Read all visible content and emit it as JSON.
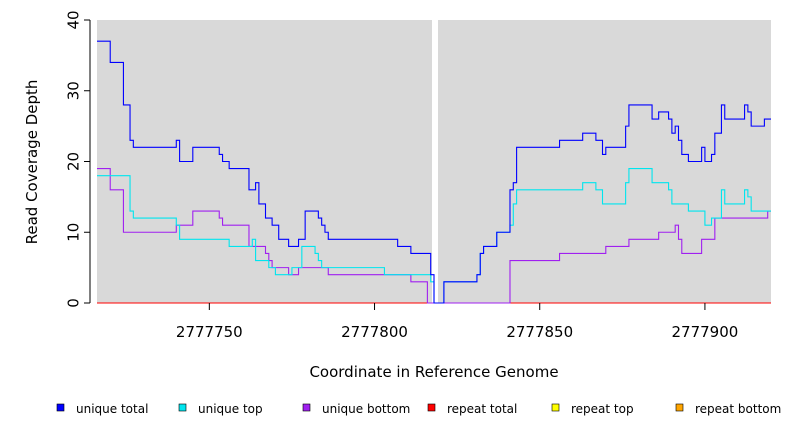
{
  "chart_data": {
    "type": "line",
    "xlabel": "Coordinate in Reference Genome",
    "ylabel": "Read Coverage Depth",
    "xlim": [
      2777716,
      2777920
    ],
    "ylim": [
      0,
      40
    ],
    "x_ticks": [
      2777750,
      2777800,
      2777850,
      2777900
    ],
    "x_tick_labels": [
      "2777750",
      "2777800",
      "2777850",
      "2777900"
    ],
    "y_ticks": [
      0,
      10,
      20,
      30,
      40
    ],
    "y_tick_labels": [
      "0",
      "10",
      "20",
      "30",
      "40"
    ],
    "grid": false,
    "background": "#d9d9d9",
    "gap": {
      "position": 2777819,
      "color": "#ffffff"
    },
    "legend_position": "bottom",
    "series": [
      {
        "name": "unique total",
        "color": "#0000ff",
        "points": [
          [
            2777716,
            37
          ],
          [
            2777720,
            37
          ],
          [
            2777720,
            34
          ],
          [
            2777724,
            34
          ],
          [
            2777724,
            28
          ],
          [
            2777726,
            28
          ],
          [
            2777726,
            23
          ],
          [
            2777727,
            23
          ],
          [
            2777727,
            22
          ],
          [
            2777740,
            22
          ],
          [
            2777740,
            23
          ],
          [
            2777741,
            23
          ],
          [
            2777741,
            20
          ],
          [
            2777745,
            20
          ],
          [
            2777745,
            22
          ],
          [
            2777753,
            22
          ],
          [
            2777753,
            21
          ],
          [
            2777754,
            21
          ],
          [
            2777754,
            20
          ],
          [
            2777756,
            20
          ],
          [
            2777756,
            19
          ],
          [
            2777762,
            19
          ],
          [
            2777762,
            16
          ],
          [
            2777764,
            16
          ],
          [
            2777764,
            17
          ],
          [
            2777765,
            17
          ],
          [
            2777765,
            14
          ],
          [
            2777767,
            14
          ],
          [
            2777767,
            12
          ],
          [
            2777769,
            12
          ],
          [
            2777769,
            11
          ],
          [
            2777771,
            11
          ],
          [
            2777771,
            9
          ],
          [
            2777774,
            9
          ],
          [
            2777774,
            8
          ],
          [
            2777777,
            8
          ],
          [
            2777777,
            9
          ],
          [
            2777779,
            9
          ],
          [
            2777779,
            13
          ],
          [
            2777783,
            13
          ],
          [
            2777783,
            12
          ],
          [
            2777784,
            12
          ],
          [
            2777784,
            11
          ],
          [
            2777785,
            11
          ],
          [
            2777785,
            10
          ],
          [
            2777786,
            10
          ],
          [
            2777786,
            9
          ],
          [
            2777807,
            9
          ],
          [
            2777807,
            8
          ],
          [
            2777811,
            8
          ],
          [
            2777811,
            7
          ],
          [
            2777817,
            7
          ],
          [
            2777817,
            4
          ],
          [
            2777818,
            4
          ],
          [
            2777818,
            0
          ],
          [
            2777819,
            0
          ],
          [
            2777819,
            0
          ],
          [
            2777821,
            0
          ],
          [
            2777821,
            3
          ],
          [
            2777831,
            3
          ],
          [
            2777831,
            4
          ],
          [
            2777832,
            4
          ],
          [
            2777832,
            7
          ],
          [
            2777833,
            7
          ],
          [
            2777833,
            8
          ],
          [
            2777837,
            8
          ],
          [
            2777837,
            10
          ],
          [
            2777841,
            10
          ],
          [
            2777841,
            16
          ],
          [
            2777842,
            16
          ],
          [
            2777842,
            17
          ],
          [
            2777843,
            17
          ],
          [
            2777843,
            22
          ],
          [
            2777856,
            22
          ],
          [
            2777856,
            23
          ],
          [
            2777863,
            23
          ],
          [
            2777863,
            24
          ],
          [
            2777867,
            24
          ],
          [
            2777867,
            23
          ],
          [
            2777869,
            23
          ],
          [
            2777869,
            21
          ],
          [
            2777870,
            21
          ],
          [
            2777870,
            22
          ],
          [
            2777876,
            22
          ],
          [
            2777876,
            25
          ],
          [
            2777877,
            25
          ],
          [
            2777877,
            28
          ],
          [
            2777884,
            28
          ],
          [
            2777884,
            26
          ],
          [
            2777886,
            26
          ],
          [
            2777886,
            27
          ],
          [
            2777889,
            27
          ],
          [
            2777889,
            26
          ],
          [
            2777890,
            26
          ],
          [
            2777890,
            24
          ],
          [
            2777891,
            24
          ],
          [
            2777891,
            25
          ],
          [
            2777892,
            25
          ],
          [
            2777892,
            23
          ],
          [
            2777893,
            23
          ],
          [
            2777893,
            21
          ],
          [
            2777895,
            21
          ],
          [
            2777895,
            20
          ],
          [
            2777899,
            20
          ],
          [
            2777899,
            22
          ],
          [
            2777900,
            22
          ],
          [
            2777900,
            20
          ],
          [
            2777902,
            20
          ],
          [
            2777902,
            21
          ],
          [
            2777903,
            21
          ],
          [
            2777903,
            24
          ],
          [
            2777905,
            24
          ],
          [
            2777905,
            28
          ],
          [
            2777906,
            28
          ],
          [
            2777906,
            26
          ],
          [
            2777912,
            26
          ],
          [
            2777912,
            28
          ],
          [
            2777913,
            28
          ],
          [
            2777913,
            27
          ],
          [
            2777914,
            27
          ],
          [
            2777914,
            25
          ],
          [
            2777918,
            25
          ],
          [
            2777918,
            26
          ],
          [
            2777920,
            26
          ]
        ]
      },
      {
        "name": "unique top",
        "color": "#00e5ee",
        "points": [
          [
            2777716,
            18
          ],
          [
            2777726,
            18
          ],
          [
            2777726,
            13
          ],
          [
            2777727,
            13
          ],
          [
            2777727,
            12
          ],
          [
            2777740,
            12
          ],
          [
            2777740,
            11
          ],
          [
            2777741,
            11
          ],
          [
            2777741,
            9
          ],
          [
            2777752,
            9
          ],
          [
            2777752,
            9
          ],
          [
            2777756,
            9
          ],
          [
            2777756,
            8
          ],
          [
            2777763,
            8
          ],
          [
            2777763,
            9
          ],
          [
            2777764,
            9
          ],
          [
            2777764,
            6
          ],
          [
            2777768,
            6
          ],
          [
            2777768,
            5
          ],
          [
            2777770,
            5
          ],
          [
            2777770,
            4
          ],
          [
            2777775,
            4
          ],
          [
            2777775,
            5
          ],
          [
            2777778,
            5
          ],
          [
            2777778,
            8
          ],
          [
            2777782,
            8
          ],
          [
            2777782,
            7
          ],
          [
            2777783,
            7
          ],
          [
            2777783,
            6
          ],
          [
            2777784,
            6
          ],
          [
            2777784,
            5
          ],
          [
            2777803,
            5
          ],
          [
            2777803,
            4
          ],
          [
            2777817,
            4
          ],
          [
            2777817,
            3
          ],
          [
            2777818,
            3
          ],
          [
            2777818,
            0
          ],
          [
            2777819,
            0
          ],
          [
            2777819,
            0
          ],
          [
            2777821,
            0
          ],
          [
            2777821,
            3
          ],
          [
            2777831,
            3
          ],
          [
            2777831,
            4
          ],
          [
            2777832,
            4
          ],
          [
            2777832,
            7
          ],
          [
            2777833,
            7
          ],
          [
            2777833,
            8
          ],
          [
            2777837,
            8
          ],
          [
            2777837,
            10
          ],
          [
            2777841,
            10
          ],
          [
            2777841,
            11
          ],
          [
            2777842,
            11
          ],
          [
            2777842,
            14
          ],
          [
            2777843,
            14
          ],
          [
            2777843,
            16
          ],
          [
            2777863,
            16
          ],
          [
            2777863,
            17
          ],
          [
            2777867,
            17
          ],
          [
            2777867,
            16
          ],
          [
            2777869,
            16
          ],
          [
            2777869,
            14
          ],
          [
            2777876,
            14
          ],
          [
            2777876,
            17
          ],
          [
            2777877,
            17
          ],
          [
            2777877,
            19
          ],
          [
            2777884,
            19
          ],
          [
            2777884,
            17
          ],
          [
            2777889,
            17
          ],
          [
            2777889,
            16
          ],
          [
            2777890,
            16
          ],
          [
            2777890,
            14
          ],
          [
            2777895,
            14
          ],
          [
            2777895,
            13
          ],
          [
            2777900,
            13
          ],
          [
            2777900,
            11
          ],
          [
            2777902,
            11
          ],
          [
            2777902,
            12
          ],
          [
            2777905,
            12
          ],
          [
            2777905,
            16
          ],
          [
            2777906,
            16
          ],
          [
            2777906,
            14
          ],
          [
            2777912,
            14
          ],
          [
            2777912,
            16
          ],
          [
            2777913,
            16
          ],
          [
            2777913,
            15
          ],
          [
            2777914,
            15
          ],
          [
            2777914,
            13
          ],
          [
            2777918,
            13
          ],
          [
            2777918,
            13
          ],
          [
            2777920,
            13
          ]
        ]
      },
      {
        "name": "unique bottom",
        "color": "#a020f0",
        "points": [
          [
            2777716,
            19
          ],
          [
            2777720,
            19
          ],
          [
            2777720,
            16
          ],
          [
            2777724,
            16
          ],
          [
            2777724,
            10
          ],
          [
            2777740,
            10
          ],
          [
            2777740,
            11
          ],
          [
            2777745,
            11
          ],
          [
            2777745,
            13
          ],
          [
            2777753,
            13
          ],
          [
            2777753,
            12
          ],
          [
            2777754,
            12
          ],
          [
            2777754,
            11
          ],
          [
            2777762,
            11
          ],
          [
            2777762,
            8
          ],
          [
            2777767,
            8
          ],
          [
            2777767,
            7
          ],
          [
            2777768,
            7
          ],
          [
            2777768,
            6
          ],
          [
            2777769,
            6
          ],
          [
            2777769,
            5
          ],
          [
            2777774,
            5
          ],
          [
            2777774,
            4
          ],
          [
            2777777,
            4
          ],
          [
            2777777,
            5
          ],
          [
            2777786,
            5
          ],
          [
            2777786,
            4
          ],
          [
            2777811,
            4
          ],
          [
            2777811,
            3
          ],
          [
            2777816,
            3
          ],
          [
            2777816,
            0
          ],
          [
            2777819,
            0
          ],
          [
            2777819,
            0
          ],
          [
            2777841,
            0
          ],
          [
            2777841,
            6
          ],
          [
            2777856,
            6
          ],
          [
            2777856,
            7
          ],
          [
            2777870,
            7
          ],
          [
            2777870,
            8
          ],
          [
            2777877,
            8
          ],
          [
            2777877,
            9
          ],
          [
            2777886,
            9
          ],
          [
            2777886,
            10
          ],
          [
            2777891,
            10
          ],
          [
            2777891,
            11
          ],
          [
            2777892,
            11
          ],
          [
            2777892,
            9
          ],
          [
            2777893,
            9
          ],
          [
            2777893,
            7
          ],
          [
            2777899,
            7
          ],
          [
            2777899,
            9
          ],
          [
            2777903,
            9
          ],
          [
            2777903,
            12
          ],
          [
            2777919,
            12
          ],
          [
            2777919,
            13
          ],
          [
            2777920,
            13
          ]
        ]
      },
      {
        "name": "repeat total",
        "color": "#ff0000",
        "points": [
          [
            2777716,
            0
          ],
          [
            2777920,
            0
          ]
        ]
      },
      {
        "name": "repeat top",
        "color": "#ffff00",
        "points": [
          [
            2777716,
            0
          ],
          [
            2777920,
            0
          ]
        ]
      },
      {
        "name": "repeat bottom",
        "color": "#ffa500",
        "points": [
          [
            2777716,
            0
          ],
          [
            2777920,
            0
          ]
        ]
      }
    ]
  }
}
